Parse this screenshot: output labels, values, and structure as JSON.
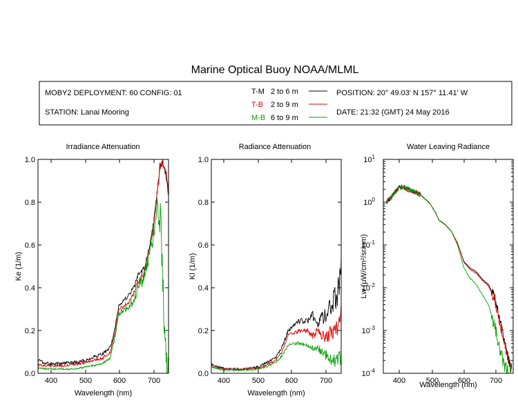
{
  "title": "Marine Optical Buoy NOAA/MLML",
  "info": {
    "deployment": "MOBY2 DEPLOYMENT: 60 CONFIG: 01",
    "station": "STATION: Lanai Mooring",
    "position": "POSITION: 20° 49.03' N   157° 11.41' W",
    "date": "DATE: 21:32 (GMT) 24 May 2016"
  },
  "legend": [
    {
      "code": "T-M",
      "range": "2 to 6  m",
      "color": "#000000"
    },
    {
      "code": "T-B",
      "range": "2 to 9  m",
      "color": "#e00000"
    },
    {
      "code": "M-B",
      "range": "6 to 9  m",
      "color": "#00a000"
    }
  ],
  "chart_data": [
    {
      "type": "line",
      "title": "Irradiance Attenuation",
      "xlabel": "Wavelength (nm)",
      "ylabel": "Ke  (1/m)",
      "xlim": [
        350,
        755
      ],
      "ylim": [
        0,
        1
      ],
      "xticks": [
        "400",
        "500",
        "600",
        "700"
      ],
      "yticks": [
        "0.0",
        "0.2",
        "0.4",
        "0.6",
        "0.8",
        "1.0"
      ],
      "x": [
        350,
        380,
        420,
        460,
        500,
        520,
        550,
        575,
        590,
        600,
        610,
        630,
        650,
        660,
        680,
        700,
        710,
        720,
        730,
        740,
        750,
        755
      ],
      "series": [
        {
          "name": "T-M",
          "color": "#000000",
          "noise": [
            0.008,
            0.02
          ],
          "values": [
            0.06,
            0.045,
            0.045,
            0.05,
            0.06,
            0.075,
            0.09,
            0.12,
            0.22,
            0.31,
            0.33,
            0.36,
            0.41,
            0.46,
            0.49,
            0.62,
            0.72,
            0.85,
            0.98,
            0.97,
            0.9,
            0.82
          ]
        },
        {
          "name": "T-B",
          "color": "#e00000",
          "noise": [
            0.006,
            0.04
          ],
          "values": [
            0.04,
            0.035,
            0.035,
            0.04,
            0.05,
            0.06,
            0.07,
            0.1,
            0.2,
            0.29,
            0.31,
            0.33,
            0.38,
            0.43,
            0.47,
            0.61,
            0.71,
            0.84,
            0.99,
            0.98,
            0.93,
            0.8
          ]
        },
        {
          "name": "M-B",
          "color": "#00a000",
          "noise": [
            0.004,
            0.12
          ],
          "values": [
            0.025,
            0.02,
            0.02,
            0.02,
            0.03,
            0.035,
            0.045,
            0.075,
            0.18,
            0.27,
            0.29,
            0.3,
            0.35,
            0.41,
            0.45,
            0.58,
            0.68,
            0.78,
            0.72,
            0.3,
            0.05,
            0.0
          ]
        }
      ]
    },
    {
      "type": "line",
      "title": "Radiance Attenuation",
      "xlabel": "Wavelength (nm)",
      "ylabel": "Kl  (1/m)",
      "xlim": [
        350,
        755
      ],
      "ylim": [
        0,
        1
      ],
      "xticks": [
        "400",
        "500",
        "600",
        "700"
      ],
      "yticks": [
        "0.0",
        "0.2",
        "0.4",
        "0.6",
        "0.8",
        "1.0"
      ],
      "x": [
        350,
        370,
        400,
        450,
        500,
        520,
        550,
        570,
        590,
        610,
        630,
        650,
        665,
        680,
        700,
        715,
        730,
        745,
        755
      ],
      "series": [
        {
          "name": "T-M",
          "color": "#000000",
          "noise": [
            0.005,
            0.08
          ],
          "values": [
            0.04,
            0.03,
            0.02,
            0.02,
            0.03,
            0.05,
            0.07,
            0.12,
            0.2,
            0.23,
            0.25,
            0.24,
            0.27,
            0.24,
            0.26,
            0.3,
            0.33,
            0.38,
            0.5
          ]
        },
        {
          "name": "T-B",
          "color": "#e00000",
          "noise": [
            0.004,
            0.06
          ],
          "values": [
            0.035,
            0.025,
            0.018,
            0.018,
            0.025,
            0.04,
            0.06,
            0.1,
            0.18,
            0.19,
            0.2,
            0.2,
            0.17,
            0.2,
            0.17,
            0.18,
            0.2,
            0.22,
            0.28
          ]
        },
        {
          "name": "M-B",
          "color": "#00a000",
          "noise": [
            0.004,
            0.05
          ],
          "values": [
            0.03,
            0.02,
            0.015,
            0.015,
            0.02,
            0.03,
            0.05,
            0.08,
            0.13,
            0.14,
            0.14,
            0.13,
            0.12,
            0.12,
            0.09,
            0.08,
            0.06,
            0.05,
            0.07
          ]
        }
      ]
    },
    {
      "type": "line",
      "title": "Water Leaving Radiance",
      "xlabel": "Wavelength (nm)",
      "ylabel": "Lw  (μW/cm²/sr/nm)",
      "yscale": "log",
      "xlim": [
        340,
        760
      ],
      "ylim": [
        0.0001,
        10
      ],
      "xticks": [
        "400",
        "500",
        "600",
        "700"
      ],
      "yticks": [
        "10",
        "10",
        "10",
        "10",
        "10",
        "10"
      ],
      "ytick_exponents": [
        "1",
        "0",
        "-1",
        "-2",
        "-3",
        "-4"
      ],
      "x": [
        350,
        365,
        380,
        395,
        410,
        430,
        460,
        490,
        510,
        520,
        540,
        560,
        580,
        600,
        620,
        640,
        660,
        680,
        700,
        715,
        730,
        745,
        755
      ],
      "series": [
        {
          "name": "T-M",
          "color": "#000000",
          "noise": [
            0.1,
            0.12
          ],
          "values": [
            1.0,
            1.3,
            1.8,
            2.3,
            2.1,
            1.9,
            1.5,
            0.95,
            0.55,
            0.38,
            0.3,
            0.21,
            0.11,
            0.042,
            0.029,
            0.024,
            0.016,
            0.012,
            0.006,
            0.002,
            0.0006,
            0.0002,
            0.00012
          ]
        },
        {
          "name": "T-B",
          "color": "#e00000",
          "noise": [
            0.1,
            0.12
          ],
          "values": [
            1.0,
            1.3,
            1.8,
            2.3,
            2.1,
            1.9,
            1.5,
            0.95,
            0.55,
            0.38,
            0.3,
            0.21,
            0.11,
            0.04,
            0.027,
            0.022,
            0.015,
            0.011,
            0.0055,
            0.0018,
            0.0005,
            0.00018,
            0.00011
          ]
        },
        {
          "name": "M-B",
          "color": "#00a000",
          "noise": [
            0.1,
            0.15
          ],
          "values": [
            1.0,
            1.3,
            1.8,
            2.3,
            2.1,
            1.9,
            1.5,
            0.95,
            0.55,
            0.38,
            0.3,
            0.21,
            0.1,
            0.03,
            0.017,
            0.012,
            0.007,
            0.004,
            0.0013,
            0.0004,
            0.00015,
            0.00011,
            0.0001
          ]
        }
      ]
    }
  ]
}
